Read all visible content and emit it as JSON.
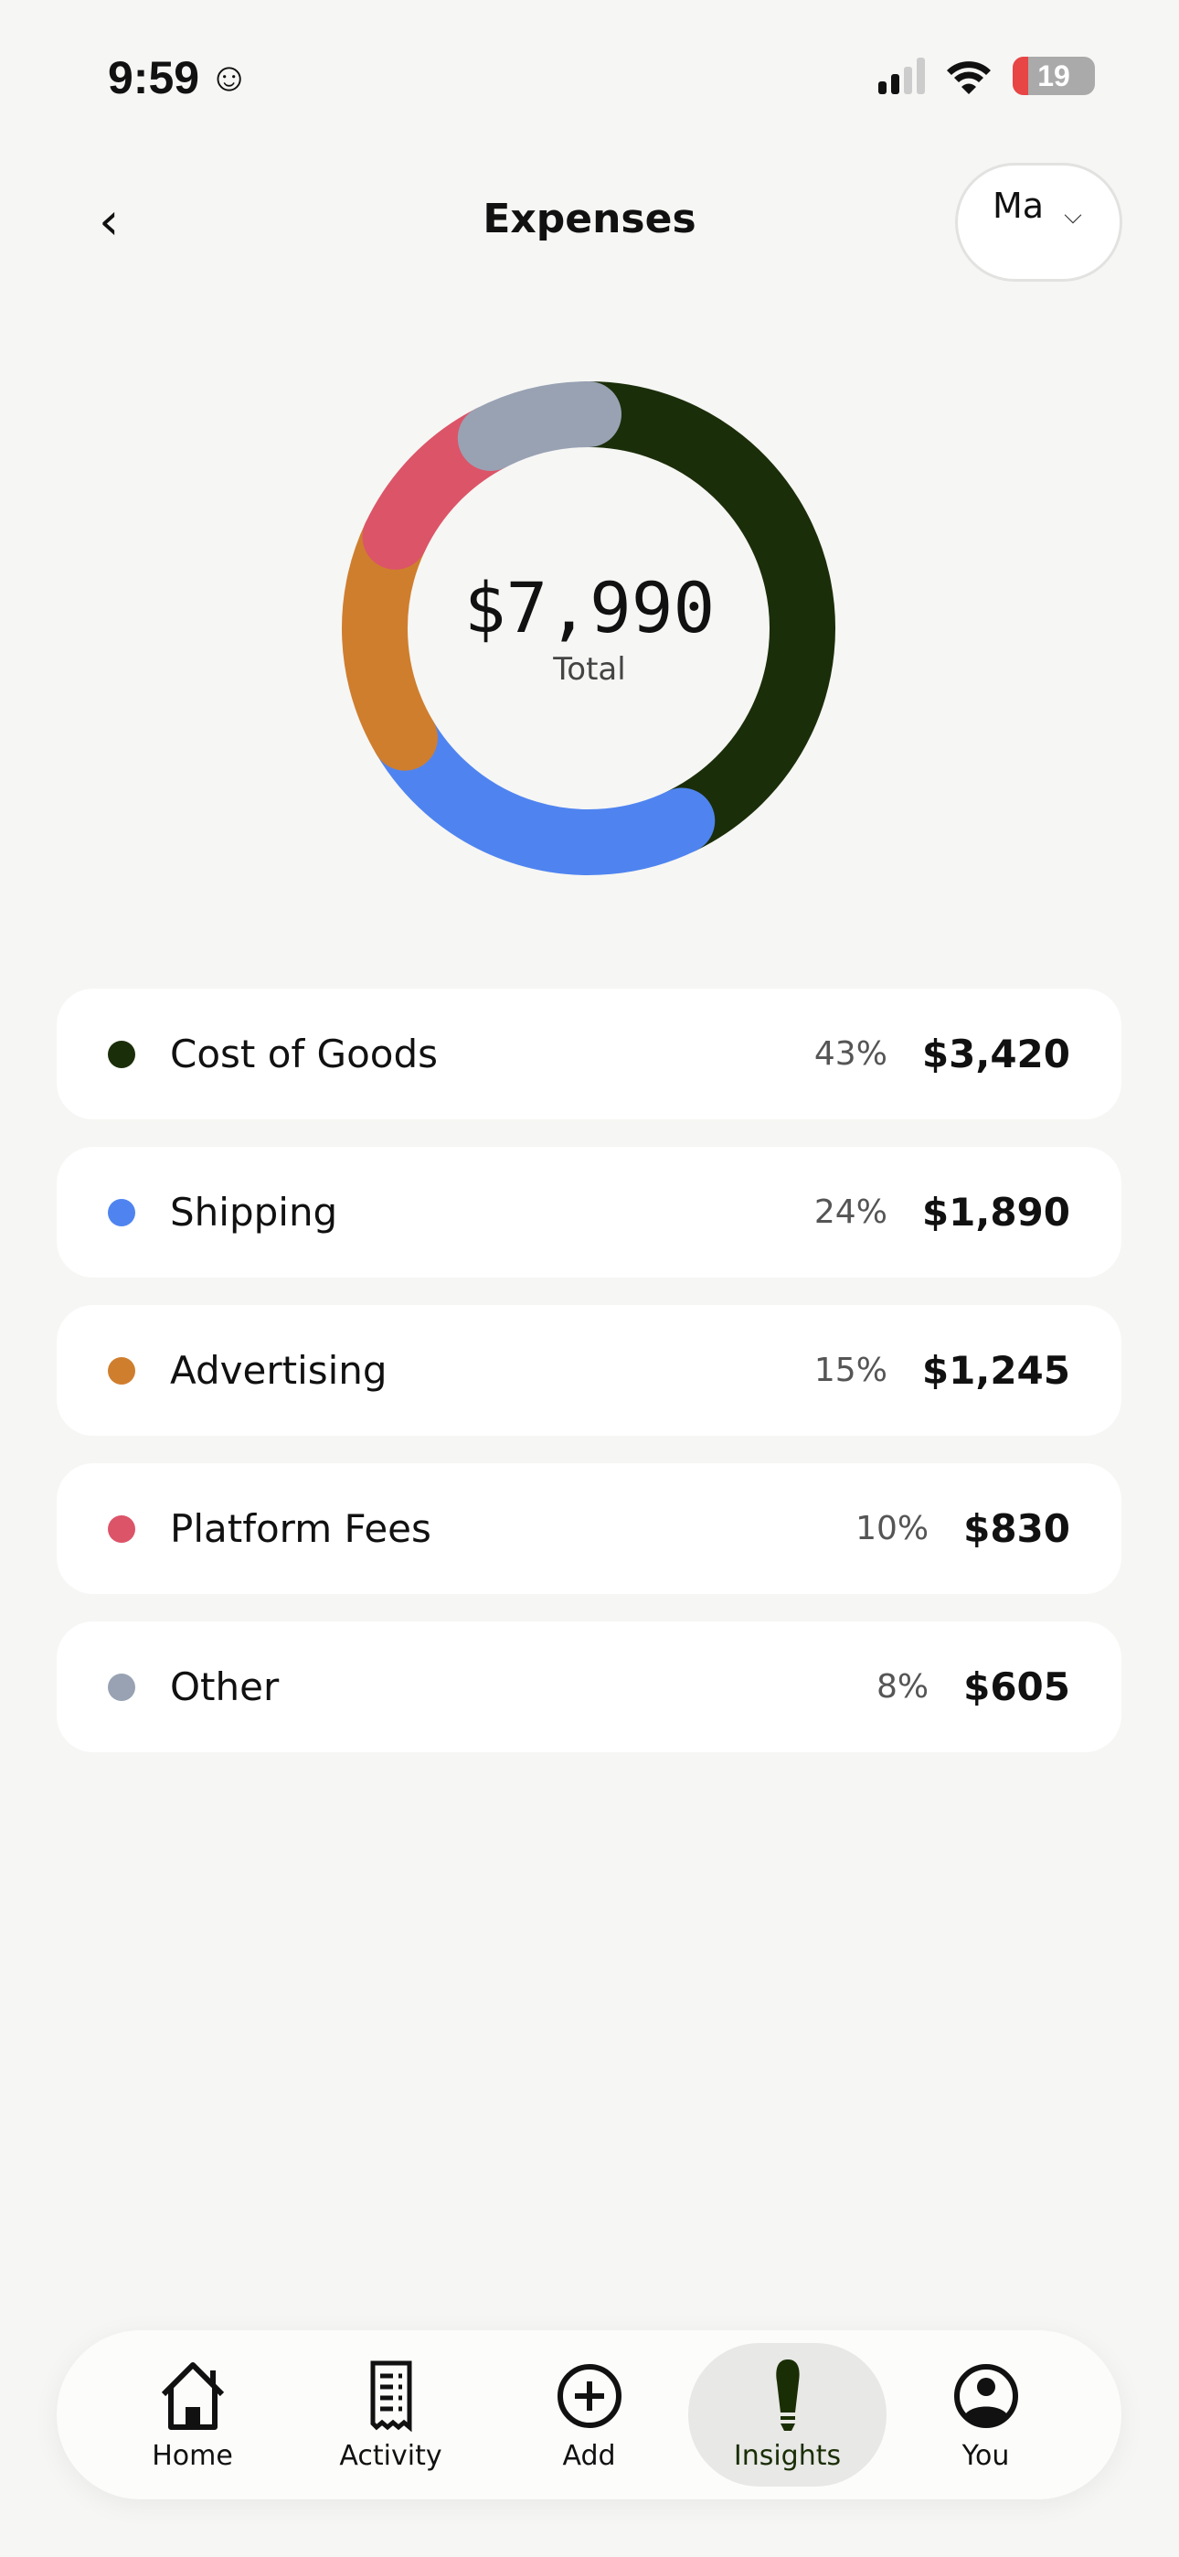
{
  "status_bar": {
    "time": "9:59",
    "emoji": "☺",
    "battery": "19",
    "battery_level": 0.19
  },
  "header": {
    "title": "Expenses",
    "back": "‹",
    "month": "Ma",
    "month_chevron": "⌄"
  },
  "total": {
    "value": "$7,990",
    "label": "Total"
  },
  "chart_data": {
    "type": "pie",
    "variant": "donut",
    "categories": [
      "Cost of Goods",
      "Shipping",
      "Advertising",
      "Platform Fees",
      "Other"
    ],
    "values": [
      3420,
      1890,
      1245,
      830,
      605
    ],
    "percents": [
      43,
      24,
      15,
      10,
      8
    ],
    "colors": [
      "#1b2e0a",
      "#4f84f0",
      "#cf7e2e",
      "#dc5468",
      "#98a2b3"
    ]
  },
  "expenses": [
    {
      "label": "Cost of Goods",
      "pct": "43%",
      "amount": "$3,420",
      "color": "#1b2e0a"
    },
    {
      "label": "Shipping",
      "pct": "24%",
      "amount": "$1,890",
      "color": "#4f84f0"
    },
    {
      "label": "Advertising",
      "pct": "15%",
      "amount": "$1,245",
      "color": "#cf7e2e"
    },
    {
      "label": "Platform Fees",
      "pct": "10%",
      "amount": "$830",
      "color": "#dc5468"
    },
    {
      "label": "Other",
      "pct": "8%",
      "amount": "$605",
      "color": "#98a2b3"
    }
  ],
  "nav": [
    {
      "label": "Home",
      "icon": "home-icon"
    },
    {
      "label": "Activity",
      "icon": "receipt-icon"
    },
    {
      "label": "Add",
      "icon": "plus-circle-icon"
    },
    {
      "label": "Insights",
      "icon": "lightbulb-icon",
      "active": true
    },
    {
      "label": "You",
      "icon": "person-circle-icon"
    }
  ]
}
